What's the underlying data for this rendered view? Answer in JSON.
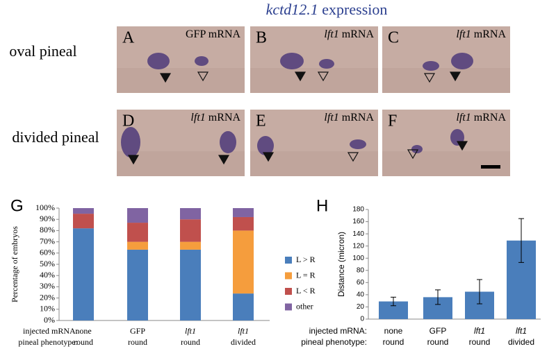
{
  "title": {
    "gene": "kctd12.1",
    "text": "expression"
  },
  "rows": [
    "oval pineal",
    "divided pineal"
  ],
  "panels": [
    {
      "letter": "A",
      "gene": "GFP",
      "text": "mRNA",
      "italic": false
    },
    {
      "letter": "B",
      "gene": "lft1",
      "text": "mRNA",
      "italic": true
    },
    {
      "letter": "C",
      "gene": "lft1",
      "text": "mRNA",
      "italic": true
    },
    {
      "letter": "D",
      "gene": "lft1",
      "text": "mRNA",
      "italic": true
    },
    {
      "letter": "E",
      "gene": "lft1",
      "text": "mRNA",
      "italic": true
    },
    {
      "letter": "F",
      "gene": "lft1",
      "text": "mRNA",
      "italic": true
    }
  ],
  "chart_data": [
    {
      "type": "stacked_bar",
      "label": "G",
      "y_label": "Percentage of embryos",
      "x_row_labels": [
        "injected mRNA:",
        "pineal phenotype:"
      ],
      "categories": [
        "none",
        "GFP",
        "lft1",
        "lft1"
      ],
      "subcategories": [
        "round",
        "round",
        "round",
        "divided"
      ],
      "italic_categories": [
        false,
        false,
        true,
        true
      ],
      "series": [
        {
          "name": "L > R",
          "color": "#4a7ebb",
          "values": [
            82,
            63,
            63,
            24
          ]
        },
        {
          "name": "L = R",
          "color": "#f59d3d",
          "values": [
            0,
            7,
            7,
            56
          ]
        },
        {
          "name": "L < R",
          "color": "#c0504d",
          "values": [
            13,
            17,
            20,
            12
          ]
        },
        {
          "name": "other",
          "color": "#8064a2",
          "values": [
            5,
            13,
            10,
            8
          ]
        }
      ],
      "ylim": [
        0,
        100
      ],
      "yticks": [
        {
          "value": 0,
          "label": "0%"
        },
        {
          "value": 10,
          "label": "10%"
        },
        {
          "value": 20,
          "label": "20%"
        },
        {
          "value": 30,
          "label": "30%"
        },
        {
          "value": 40,
          "label": "40%"
        },
        {
          "value": 50,
          "label": "50%"
        },
        {
          "value": 60,
          "label": "60%"
        },
        {
          "value": 70,
          "label": "70%"
        },
        {
          "value": 80,
          "label": "80%"
        },
        {
          "value": 90,
          "label": "90%"
        },
        {
          "value": 100,
          "label": "100%"
        }
      ]
    },
    {
      "type": "bar",
      "label": "H",
      "y_label": "Distance (micron)",
      "x_row_labels": [
        "injected mRNA:",
        "pineal phenotype:"
      ],
      "categories": [
        "none",
        "GFP",
        "lft1",
        "lft1"
      ],
      "subcategories": [
        "round",
        "round",
        "round",
        "divided"
      ],
      "italic_categories": [
        false,
        false,
        true,
        true
      ],
      "values": [
        29,
        36,
        45,
        129
      ],
      "errors": [
        7,
        12,
        20,
        36
      ],
      "color": "#4a7ebb",
      "ylim": [
        0,
        180
      ],
      "yticks": [
        0,
        20,
        40,
        60,
        80,
        100,
        120,
        140,
        160,
        180
      ]
    }
  ]
}
